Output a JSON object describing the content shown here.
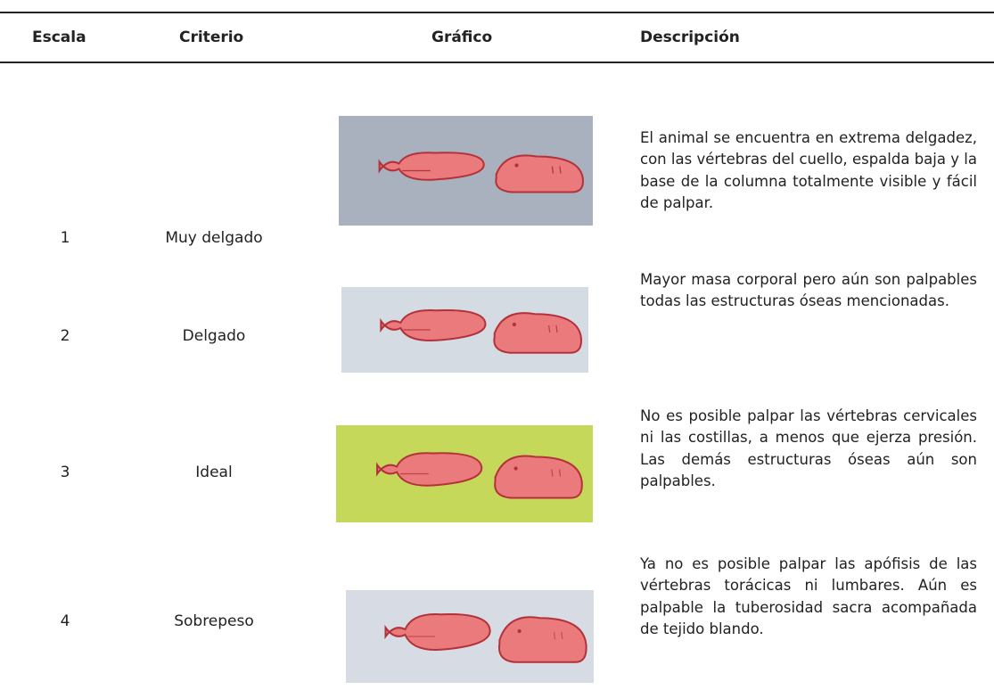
{
  "header": {
    "columns": [
      "Escala",
      "Criterio",
      "Gráfico",
      "Descripción"
    ]
  },
  "table": {
    "rows": [
      [
        "1",
        "Muy delgado",
        "El animal se encuentra en extrema delgadez, con las vértebras del cuello, espalda baja y la base de la columna totalmente visible y fácil de palpar."
      ],
      [
        "2",
        "Delgado",
        "Mayor masa corporal pero aún son palpables todas las estructuras óseas mencionadas."
      ],
      [
        "3",
        "Ideal",
        "No es posible palpar las vértebras cervicales ni las costillas, a menos que ejerza presión. Las demás estructuras óseas aún son palpables."
      ],
      [
        "4",
        "Sobrepeso",
        "Ya no es posible palpar las apófisis de las vértebras torácicas ni lumbares. Aún es palpable la tuberosidad sacra acompañada de tejido blando."
      ]
    ]
  }
}
